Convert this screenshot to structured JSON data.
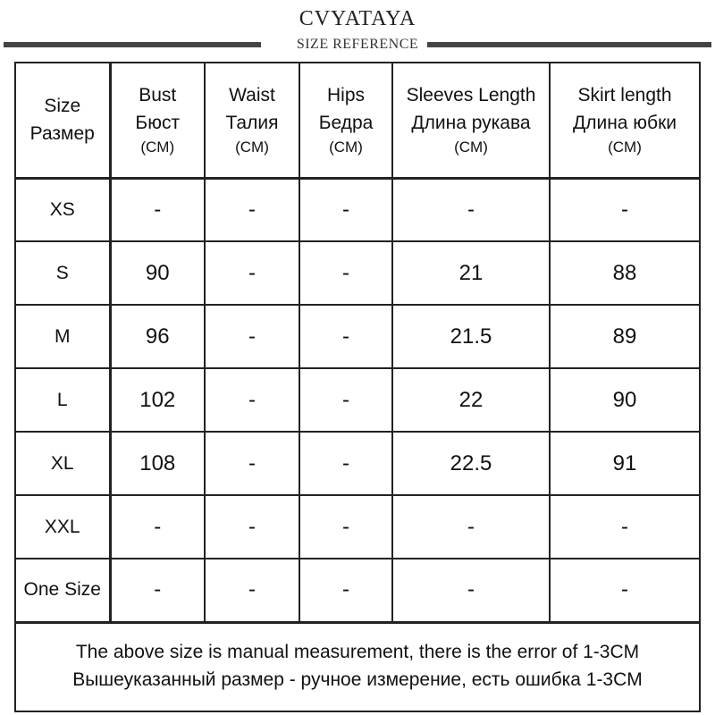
{
  "header": {
    "brand": "CVYATAYA",
    "subtitle": "SIZE REFERENCE"
  },
  "table": {
    "columns": [
      {
        "en": "Size",
        "ru": "Размер",
        "unit": ""
      },
      {
        "en": "Bust",
        "ru": "Бюст",
        "unit": "(CM)"
      },
      {
        "en": "Waist",
        "ru": "Талия",
        "unit": "(CM)"
      },
      {
        "en": "Hips",
        "ru": "Бедра",
        "unit": "(CM)"
      },
      {
        "en": "Sleeves Length",
        "ru": "Длина рукава",
        "unit": "(CM)"
      },
      {
        "en": "Skirt length",
        "ru": "Длина юбки",
        "unit": "(CM)"
      }
    ],
    "rows": [
      {
        "size": "XS",
        "values": [
          "-",
          "-",
          "-",
          "-",
          "-"
        ]
      },
      {
        "size": "S",
        "values": [
          "90",
          "-",
          "-",
          "21",
          "88"
        ]
      },
      {
        "size": "M",
        "values": [
          "96",
          "-",
          "-",
          "21.5",
          "89"
        ]
      },
      {
        "size": "L",
        "values": [
          "102",
          "-",
          "-",
          "22",
          "90"
        ]
      },
      {
        "size": "XL",
        "values": [
          "108",
          "-",
          "-",
          "22.5",
          "91"
        ]
      },
      {
        "size": "XXL",
        "values": [
          "-",
          "-",
          "-",
          "-",
          "-"
        ]
      },
      {
        "size": "One Size",
        "values": [
          "-",
          "-",
          "-",
          "-",
          "-"
        ]
      }
    ]
  },
  "note": {
    "en": "The above size is manual measurement, there is the error of 1-3CM",
    "ru": "Вышеуказанный размер - ручное измерение, есть ошибка 1-3CM"
  }
}
